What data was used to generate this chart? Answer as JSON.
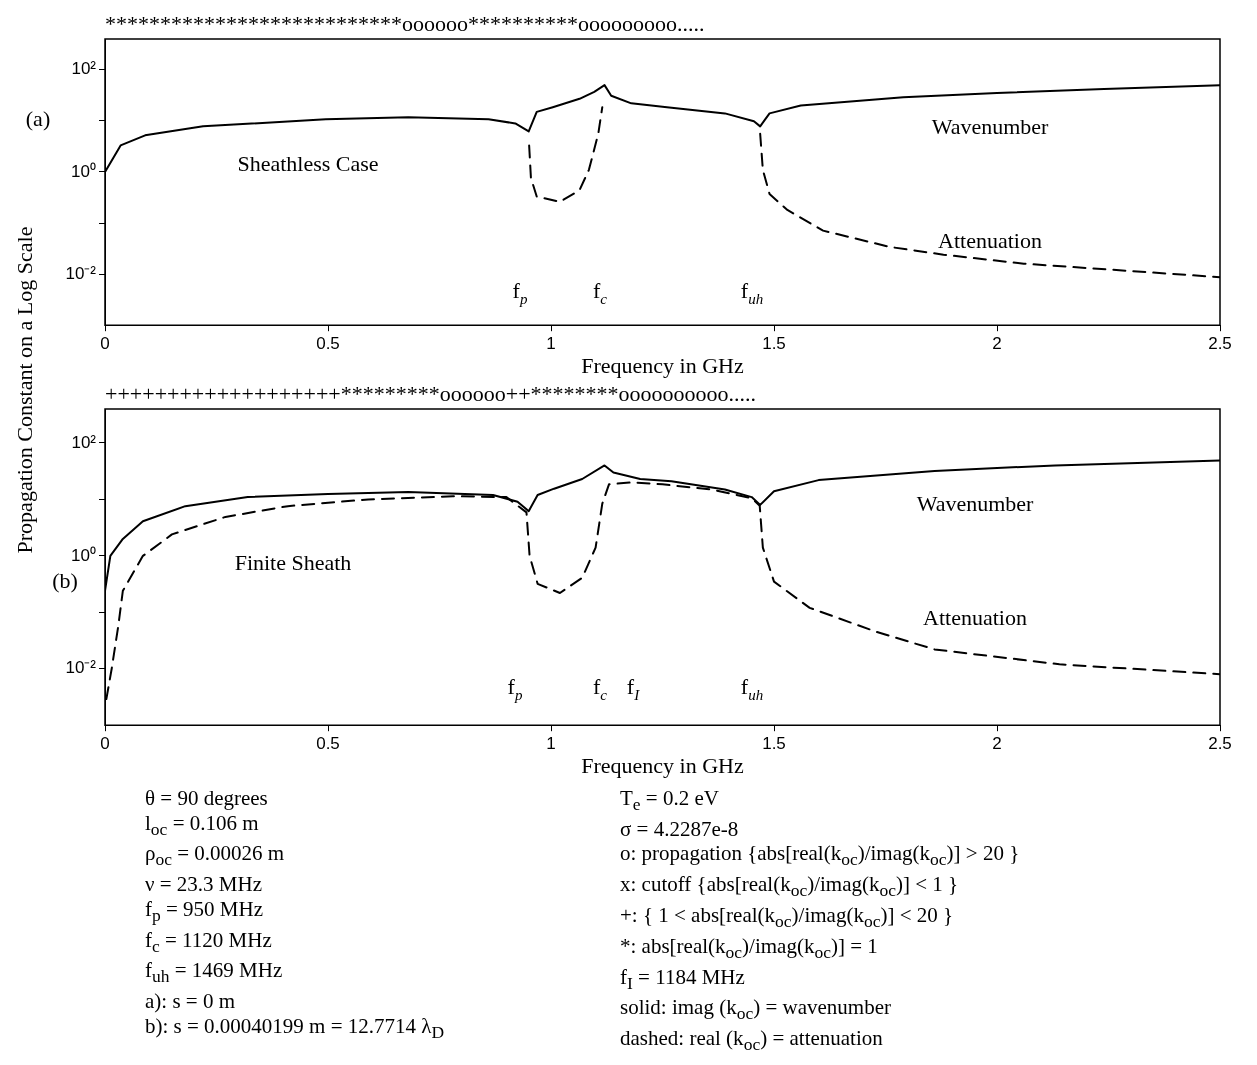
{
  "chart_data": [
    {
      "type": "line",
      "xlabel": "Frequency in GHz",
      "ylabel": "Propagation Constant on a Log Scale",
      "log": true,
      "grid": false,
      "legend": false,
      "xlim": [
        0,
        2.5
      ],
      "xticks": [
        0,
        0.5,
        1,
        1.5,
        2,
        2.5
      ],
      "ylim": [
        0.001,
        400
      ],
      "yticks": [
        {
          "value": 0.01,
          "label": "10⁻²"
        },
        {
          "value": 0.1,
          "label": null
        },
        {
          "value": 1,
          "label": "10⁰"
        },
        {
          "value": 10,
          "label": null
        },
        {
          "value": 100,
          "label": "10²"
        }
      ],
      "annotations": [
        "***************************oooooo**********ooooooooo.....",
        "(a)",
        "Sheathless Case",
        "Wavenumber",
        "Attenuation",
        "f$_{p}$",
        "f$_{c}$",
        "f$_{uh}$"
      ],
      "series": [
        {
          "color": "#000000",
          "line_style": "solid",
          "x": [
            0,
            0.035,
            0.09,
            0.22,
            0.495,
            0.68,
            0.86,
            0.92,
            0.95,
            0.968,
            1.004,
            1.064,
            1.097,
            1.12,
            1.135,
            1.18,
            1.26,
            1.39,
            1.455,
            1.469,
            1.49,
            1.56,
            1.79,
            2.0,
            2.24,
            2.5
          ],
          "values": [
            1.0,
            3.3,
            5.2,
            7.8,
            10.7,
            11.7,
            10.7,
            8.9,
            6.2,
            15,
            18.5,
            27,
            37,
            50,
            31,
            22,
            18.5,
            14,
            9.8,
            7.8,
            14,
            20,
            29,
            35,
            42,
            50
          ]
        },
        {
          "color": "#000000",
          "line_style": "dashed",
          "x": [
            0.951,
            0.955,
            0.968,
            1.02,
            1.064,
            1.085,
            1.106,
            1.115,
            1.3,
            1.469,
            1.475,
            1.49,
            1.53,
            1.61,
            1.76,
            1.88,
            2.06,
            2.3,
            2.5
          ],
          "values": [
            3.3,
            0.76,
            0.33,
            0.26,
            0.44,
            1.1,
            5.6,
            18.5,
            null,
            5.6,
            1.1,
            0.37,
            0.18,
            0.071,
            0.034,
            0.024,
            0.016,
            0.0115,
            0.0087
          ]
        }
      ]
    },
    {
      "type": "line",
      "xlabel": "Frequency in GHz",
      "log": true,
      "grid": false,
      "legend": false,
      "xlim": [
        0,
        2.5
      ],
      "xticks": [
        0,
        0.5,
        1,
        1.5,
        2,
        2.5
      ],
      "ylim": [
        0.001,
        400
      ],
      "yticks": [
        {
          "value": 0.01,
          "label": "10⁻²"
        },
        {
          "value": 0.1,
          "label": null
        },
        {
          "value": 1,
          "label": "10⁰"
        },
        {
          "value": 10,
          "label": null
        },
        {
          "value": 100,
          "label": "10²"
        }
      ],
      "annotations": [
        "+++++++++++++++++++*********oooooo++********oooooooooo.....",
        "(b)",
        "Finite Sheath",
        "Wavenumber",
        "Attenuation",
        "f$_{p}$",
        "f$_{c}$",
        "f$_{I}$",
        "f$_{uh}$"
      ],
      "series": [
        {
          "color": "#000000",
          "line_style": "solid",
          "x": [
            0,
            0.012,
            0.04,
            0.085,
            0.18,
            0.32,
            0.5,
            0.68,
            0.87,
            0.925,
            0.95,
            0.97,
            1.007,
            1.07,
            1.12,
            1.14,
            1.2,
            1.27,
            1.39,
            1.45,
            1.469,
            1.5,
            1.6,
            1.86,
            2.13,
            2.5
          ],
          "values": [
            0.24,
            1.0,
            2.0,
            4.1,
            7.6,
            11,
            12.5,
            13.6,
            12,
            9.1,
            6.2,
            12,
            15.5,
            23,
            40,
            30,
            23,
            21,
            15,
            11,
            8,
            14,
            22,
            32,
            40,
            49
          ]
        },
        {
          "color": "#000000",
          "line_style": "dashed",
          "x": [
            0.003,
            0.015,
            0.03,
            0.04,
            0.085,
            0.15,
            0.27,
            0.41,
            0.59,
            0.78,
            0.9,
            0.945,
            0.952,
            0.97,
            1.02,
            1.07,
            1.1,
            1.115,
            1.13,
            1.18,
            1.25,
            1.36,
            1.45,
            1.468,
            1.475,
            1.5,
            1.58,
            1.73,
            1.86,
            2.14,
            2.5
          ],
          "values": [
            0.0029,
            0.01,
            0.059,
            0.24,
            1.0,
            2.4,
            4.9,
            7.6,
            10,
            11.4,
            11,
            5.9,
            1.0,
            0.32,
            0.22,
            0.41,
            1.4,
            8.4,
            18.5,
            20,
            18.5,
            15,
            10.5,
            7.7,
            1.4,
            0.35,
            0.12,
            0.045,
            0.022,
            0.012,
            0.008
          ]
        }
      ]
    },
    {
      "type": "other",
      "annotations": [
        "θ = 90 degrees",
        "l$_{oc}$ = 0.106 m",
        "ρ$_{oc}$ = 0.00026 m",
        "ν = 23.3 MHz",
        "f$_{p}$ = 950 MHz",
        "f$_{c}$ = 1120 MHz",
        "f$_{uh}$ = 1469 MHz",
        "a): s = 0 m",
        "b): s = 0.00040199 m = 12.7714 λ$_{D}$"
      ]
    },
    {
      "type": "other",
      "annotations": [
        "T$_{e}$ = 0.2 eV",
        "σ = 4.2287e-8",
        "o: propagation {abs[real(k$_{oc}$)/imag(k$_{oc}$)] > 20 }",
        "x: cutoff {abs[real(k$_{oc}$)/imag(k$_{oc}$)] < 1 }",
        "+: { 1 < abs[real(k$_{oc}$)/imag(k$_{oc}$)] < 20 }",
        "*: abs[real(k$_{oc}$)/imag(k$_{oc}$)] = 1",
        "f$_{I}$ = 1184 MHz",
        "solid: imag (k$_{oc}$) = wavenumber",
        "dashed: real (k$_{oc}$) = attenuation"
      ]
    }
  ]
}
